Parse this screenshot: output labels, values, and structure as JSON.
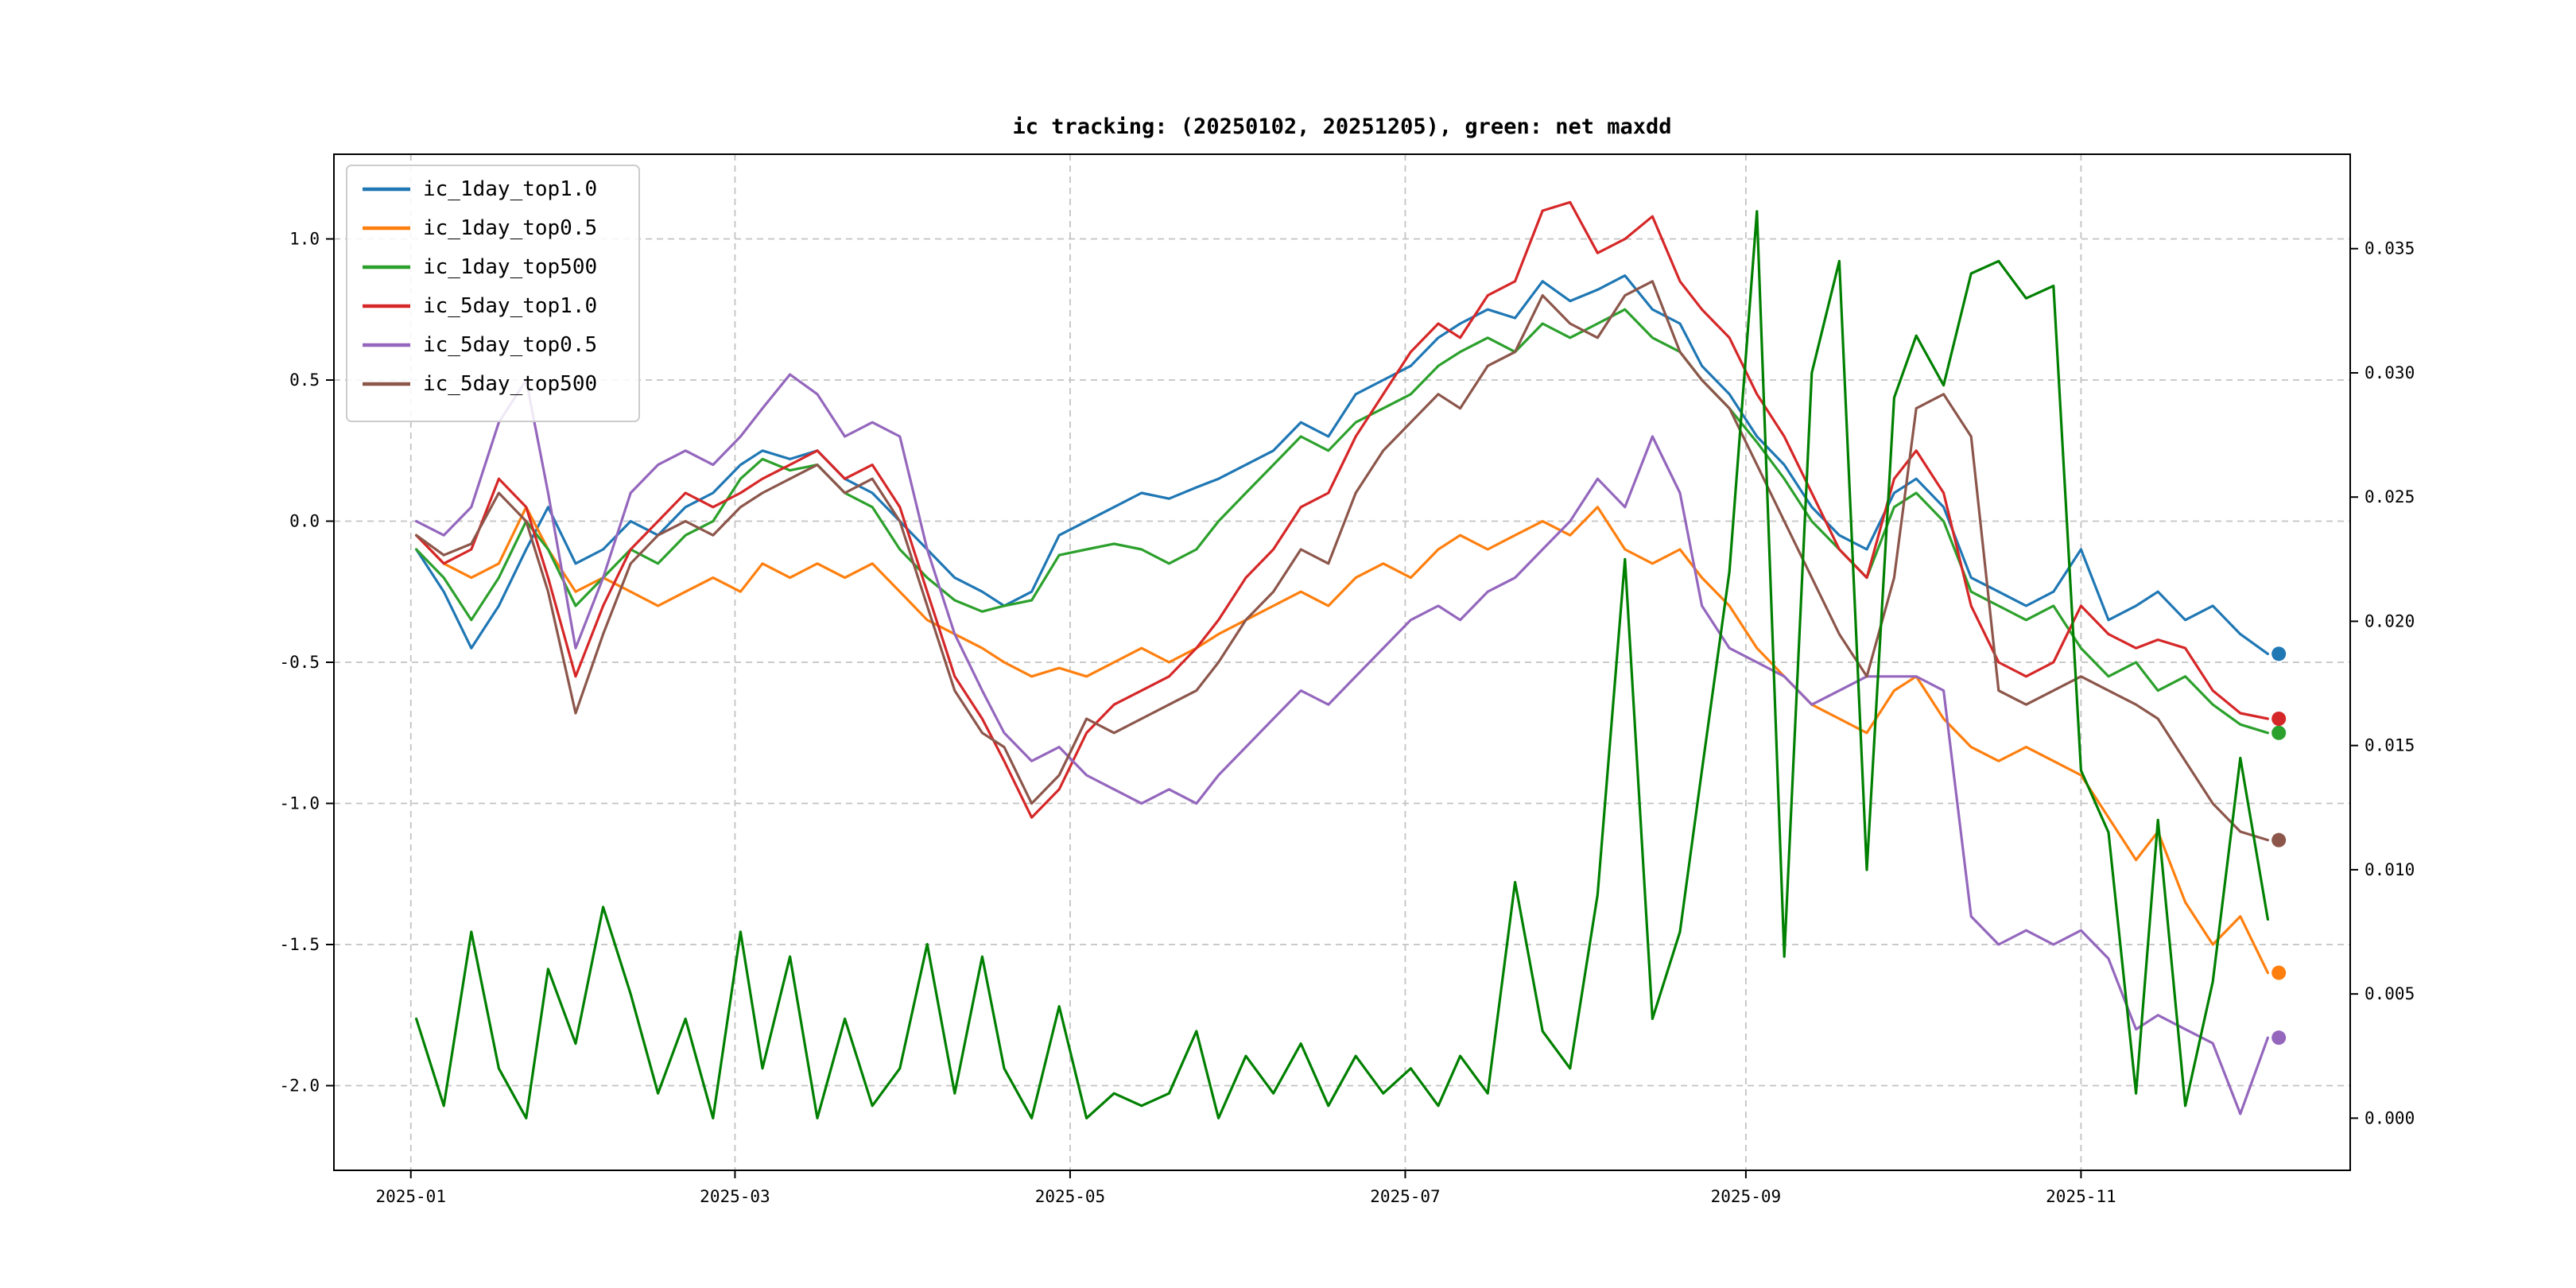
{
  "figure": {
    "background": "#ffffff",
    "spine_color": "#000000",
    "grid_color": "#c3c3c3"
  },
  "chart_data": {
    "type": "line",
    "title": "ic tracking: (20250102, 20251205), green: net maxdd",
    "legend_position": "upper-left",
    "grid": {
      "on": true,
      "style": "dashed"
    },
    "marker_day": 340,
    "x_axis": {
      "epoch": "2025-01-01",
      "xlim_days": [
        -14,
        353
      ],
      "tick_days": [
        0,
        59,
        120,
        181,
        243,
        304
      ],
      "tick_labels": [
        "2025-01",
        "2025-03",
        "2025-05",
        "2025-07",
        "2025-09",
        "2025-11"
      ]
    },
    "left_axis": {
      "ylim": [
        -2.3,
        1.3
      ],
      "ticks": [
        1.0,
        0.5,
        0.0,
        -0.5,
        -1.0,
        -1.5,
        -2.0
      ],
      "tick_labels": [
        "1.0",
        "0.5",
        "0.0",
        "-0.5",
        "-1.0",
        "-1.5",
        "-2.0"
      ]
    },
    "right_axis": {
      "ylim": [
        -0.0021,
        0.0388
      ],
      "ticks": [
        0.0,
        0.005,
        0.01,
        0.015,
        0.02,
        0.025,
        0.03,
        0.035
      ],
      "tick_labels": [
        "0.000",
        "0.005",
        "0.010",
        "0.015",
        "0.020",
        "0.025",
        "0.030",
        "0.035"
      ]
    },
    "x_days": [
      1,
      6,
      11,
      16,
      21,
      25,
      30,
      35,
      40,
      45,
      50,
      55,
      60,
      64,
      69,
      74,
      79,
      84,
      89,
      94,
      99,
      104,
      108,
      113,
      118,
      123,
      128,
      133,
      138,
      143,
      147,
      152,
      157,
      162,
      167,
      172,
      177,
      182,
      187,
      191,
      196,
      201,
      206,
      211,
      216,
      221,
      226,
      231,
      235,
      240,
      245,
      250,
      255,
      260,
      265,
      270,
      274,
      279,
      284,
      289,
      294,
      299,
      304,
      309,
      314,
      318,
      323,
      328,
      333,
      338
    ],
    "series": [
      {
        "name": "ic_1day_top1.0",
        "color": "#1f77b4",
        "axis": "left",
        "legend": true,
        "marker": true,
        "values": [
          -0.1,
          -0.25,
          -0.45,
          -0.3,
          -0.1,
          0.05,
          -0.15,
          -0.1,
          0.0,
          -0.05,
          0.05,
          0.1,
          0.2,
          0.25,
          0.22,
          0.25,
          0.15,
          0.1,
          0.0,
          -0.1,
          -0.2,
          -0.25,
          -0.3,
          -0.25,
          -0.05,
          0.0,
          0.05,
          0.1,
          0.08,
          0.12,
          0.15,
          0.2,
          0.25,
          0.35,
          0.3,
          0.45,
          0.5,
          0.55,
          0.65,
          0.7,
          0.75,
          0.72,
          0.85,
          0.78,
          0.82,
          0.87,
          0.75,
          0.7,
          0.55,
          0.45,
          0.3,
          0.2,
          0.05,
          -0.05,
          -0.1,
          0.1,
          0.15,
          0.05,
          -0.2,
          -0.25,
          -0.3,
          -0.25,
          -0.1,
          -0.35,
          -0.3,
          -0.25,
          -0.35,
          -0.3,
          -0.4,
          -0.47
        ]
      },
      {
        "name": "ic_1day_top0.5",
        "color": "#ff7f0e",
        "axis": "left",
        "legend": true,
        "marker": true,
        "values": [
          -0.05,
          -0.15,
          -0.2,
          -0.15,
          0.05,
          -0.1,
          -0.25,
          -0.2,
          -0.25,
          -0.3,
          -0.25,
          -0.2,
          -0.25,
          -0.15,
          -0.2,
          -0.15,
          -0.2,
          -0.15,
          -0.25,
          -0.35,
          -0.4,
          -0.45,
          -0.5,
          -0.55,
          -0.52,
          -0.55,
          -0.5,
          -0.45,
          -0.5,
          -0.45,
          -0.4,
          -0.35,
          -0.3,
          -0.25,
          -0.3,
          -0.2,
          -0.15,
          -0.2,
          -0.1,
          -0.05,
          -0.1,
          -0.05,
          0.0,
          -0.05,
          0.05,
          -0.1,
          -0.15,
          -0.1,
          -0.2,
          -0.3,
          -0.45,
          -0.55,
          -0.65,
          -0.7,
          -0.75,
          -0.6,
          -0.55,
          -0.7,
          -0.8,
          -0.85,
          -0.8,
          -0.85,
          -0.9,
          -1.05,
          -1.2,
          -1.1,
          -1.35,
          -1.5,
          -1.4,
          -1.6
        ]
      },
      {
        "name": "ic_1day_top500",
        "color": "#2ca02c",
        "axis": "left",
        "legend": true,
        "marker": true,
        "values": [
          -0.1,
          -0.2,
          -0.35,
          -0.2,
          0.0,
          -0.1,
          -0.3,
          -0.2,
          -0.1,
          -0.15,
          -0.05,
          0.0,
          0.15,
          0.22,
          0.18,
          0.2,
          0.1,
          0.05,
          -0.1,
          -0.2,
          -0.28,
          -0.32,
          -0.3,
          -0.28,
          -0.12,
          -0.1,
          -0.08,
          -0.1,
          -0.15,
          -0.1,
          0.0,
          0.1,
          0.2,
          0.3,
          0.25,
          0.35,
          0.4,
          0.45,
          0.55,
          0.6,
          0.65,
          0.6,
          0.7,
          0.65,
          0.7,
          0.75,
          0.65,
          0.6,
          0.5,
          0.4,
          0.28,
          0.15,
          0.0,
          -0.1,
          -0.2,
          0.05,
          0.1,
          0.0,
          -0.25,
          -0.3,
          -0.35,
          -0.3,
          -0.45,
          -0.55,
          -0.5,
          -0.6,
          -0.55,
          -0.65,
          -0.72,
          -0.75
        ]
      },
      {
        "name": "ic_5day_top1.0",
        "color": "#d62728",
        "axis": "left",
        "legend": true,
        "marker": true,
        "values": [
          -0.05,
          -0.15,
          -0.1,
          0.15,
          0.05,
          -0.2,
          -0.55,
          -0.3,
          -0.1,
          0.0,
          0.1,
          0.05,
          0.1,
          0.15,
          0.2,
          0.25,
          0.15,
          0.2,
          0.05,
          -0.25,
          -0.55,
          -0.7,
          -0.85,
          -1.05,
          -0.95,
          -0.75,
          -0.65,
          -0.6,
          -0.55,
          -0.45,
          -0.35,
          -0.2,
          -0.1,
          0.05,
          0.1,
          0.3,
          0.45,
          0.6,
          0.7,
          0.65,
          0.8,
          0.85,
          1.1,
          1.13,
          0.95,
          1.0,
          1.08,
          0.85,
          0.75,
          0.65,
          0.45,
          0.3,
          0.1,
          -0.1,
          -0.2,
          0.15,
          0.25,
          0.1,
          -0.3,
          -0.5,
          -0.55,
          -0.5,
          -0.3,
          -0.4,
          -0.45,
          -0.42,
          -0.45,
          -0.6,
          -0.68,
          -0.7
        ]
      },
      {
        "name": "ic_5day_top0.5",
        "color": "#9467bd",
        "axis": "left",
        "legend": true,
        "marker": true,
        "values": [
          0.0,
          -0.05,
          0.05,
          0.35,
          0.5,
          0.1,
          -0.45,
          -0.2,
          0.1,
          0.2,
          0.25,
          0.2,
          0.3,
          0.4,
          0.52,
          0.45,
          0.3,
          0.35,
          0.3,
          -0.1,
          -0.4,
          -0.6,
          -0.75,
          -0.85,
          -0.8,
          -0.9,
          -0.95,
          -1.0,
          -0.95,
          -1.0,
          -0.9,
          -0.8,
          -0.7,
          -0.6,
          -0.65,
          -0.55,
          -0.45,
          -0.35,
          -0.3,
          -0.35,
          -0.25,
          -0.2,
          -0.1,
          0.0,
          0.15,
          0.05,
          0.3,
          0.1,
          -0.3,
          -0.45,
          -0.5,
          -0.55,
          -0.65,
          -0.6,
          -0.55,
          -0.55,
          -0.55,
          -0.6,
          -1.4,
          -1.5,
          -1.45,
          -1.5,
          -1.45,
          -1.55,
          -1.8,
          -1.75,
          -1.8,
          -1.85,
          -2.1,
          -1.83
        ]
      },
      {
        "name": "ic_5day_top500",
        "color": "#8c564b",
        "axis": "left",
        "legend": true,
        "marker": true,
        "values": [
          -0.05,
          -0.12,
          -0.08,
          0.1,
          0.0,
          -0.25,
          -0.68,
          -0.4,
          -0.15,
          -0.05,
          0.0,
          -0.05,
          0.05,
          0.1,
          0.15,
          0.2,
          0.1,
          0.15,
          0.0,
          -0.3,
          -0.6,
          -0.75,
          -0.8,
          -1.0,
          -0.9,
          -0.7,
          -0.75,
          -0.7,
          -0.65,
          -0.6,
          -0.5,
          -0.35,
          -0.25,
          -0.1,
          -0.15,
          0.1,
          0.25,
          0.35,
          0.45,
          0.4,
          0.55,
          0.6,
          0.8,
          0.7,
          0.65,
          0.8,
          0.85,
          0.6,
          0.5,
          0.4,
          0.2,
          0.0,
          -0.2,
          -0.4,
          -0.55,
          -0.2,
          0.4,
          0.45,
          0.3,
          -0.6,
          -0.65,
          -0.6,
          -0.55,
          -0.6,
          -0.65,
          -0.7,
          -0.85,
          -1.0,
          -1.1,
          -1.13
        ]
      },
      {
        "name": "net_maxdd",
        "color": "#008000",
        "axis": "right",
        "legend": false,
        "marker": false,
        "values": [
          0.004,
          0.0005,
          0.0075,
          0.002,
          0.0,
          0.006,
          0.003,
          0.0085,
          0.005,
          0.001,
          0.004,
          0.0,
          0.0075,
          0.002,
          0.0065,
          0.0,
          0.004,
          0.0005,
          0.002,
          0.007,
          0.001,
          0.0065,
          0.002,
          0.0,
          0.0045,
          0.0,
          0.001,
          0.0005,
          0.001,
          0.0035,
          0.0,
          0.0025,
          0.001,
          0.003,
          0.0005,
          0.0025,
          0.001,
          0.002,
          0.0005,
          0.0025,
          0.001,
          0.0095,
          0.0035,
          0.002,
          0.009,
          0.0225,
          0.004,
          0.0075,
          0.014,
          0.022,
          0.0365,
          0.0065,
          0.03,
          0.0345,
          0.01,
          0.029,
          0.0315,
          0.0295,
          0.034,
          0.0345,
          0.033,
          0.0335,
          0.014,
          0.0115,
          0.001,
          0.012,
          0.0005,
          0.0055,
          0.0145,
          0.008
        ]
      }
    ]
  }
}
